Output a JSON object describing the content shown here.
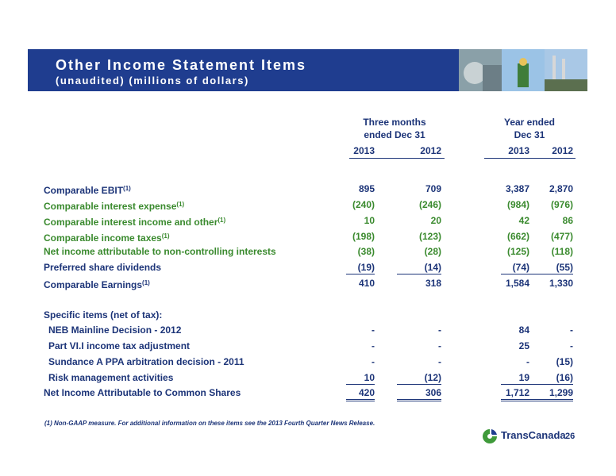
{
  "header": {
    "title": "Other Income Statement Items",
    "subtitle": "(unaudited) (millions of dollars)"
  },
  "table": {
    "group_headers": [
      [
        "Three months",
        "ended Dec 31"
      ],
      [
        "Year ended",
        "Dec 31"
      ]
    ],
    "years": [
      "2013",
      "2012",
      "2013",
      "2012"
    ],
    "rows": [
      {
        "label": "Comparable EBIT",
        "note": "(1)",
        "values": [
          "895",
          "709",
          "3,387",
          "2,870"
        ]
      },
      {
        "label": "Comparable interest expense",
        "note": "(1)",
        "values": [
          "(240)",
          "(246)",
          "(984)",
          "(976)"
        ]
      },
      {
        "label": "Comparable interest income and other",
        "note": "(1)",
        "values": [
          "10",
          "20",
          "42",
          "86"
        ]
      },
      {
        "label": "Comparable income taxes",
        "note": "(1)",
        "values": [
          "(198)",
          "(123)",
          "(662)",
          "(477)"
        ]
      },
      {
        "label": "Net income attributable to non-controlling interests",
        "values": [
          "(38)",
          "(28)",
          "(125)",
          "(118)"
        ]
      },
      {
        "label": "Preferred share dividends",
        "values": [
          "(19)",
          "(14)",
          "(74)",
          "(55)"
        ]
      },
      {
        "label": "Comparable Earnings",
        "note": "(1)",
        "values": [
          "410",
          "318",
          "1,584",
          "1,330"
        ]
      },
      {
        "label": "Specific items (net of tax):"
      },
      {
        "label": "NEB Mainline Decision - 2012",
        "values": [
          "-",
          "-",
          "84",
          "-"
        ]
      },
      {
        "label": "Part VI.I income tax adjustment",
        "values": [
          "-",
          "-",
          "25",
          "-"
        ]
      },
      {
        "label": "Sundance A PPA arbitration decision - 2011",
        "values": [
          "-",
          "-",
          "-",
          "(15)"
        ]
      },
      {
        "label": "Risk management activities",
        "values": [
          "10",
          "(12)",
          "19",
          "(16)"
        ]
      },
      {
        "label": "Net Income Attributable to Common Shares",
        "values": [
          "420",
          "306",
          "1,712",
          "1,299"
        ]
      }
    ]
  },
  "footnote": "(1) Non-GAAP measure.  For additional information on these items see the 2013 Fourth Quarter News Release.",
  "logo": "TransCanada",
  "page_number": "26"
}
